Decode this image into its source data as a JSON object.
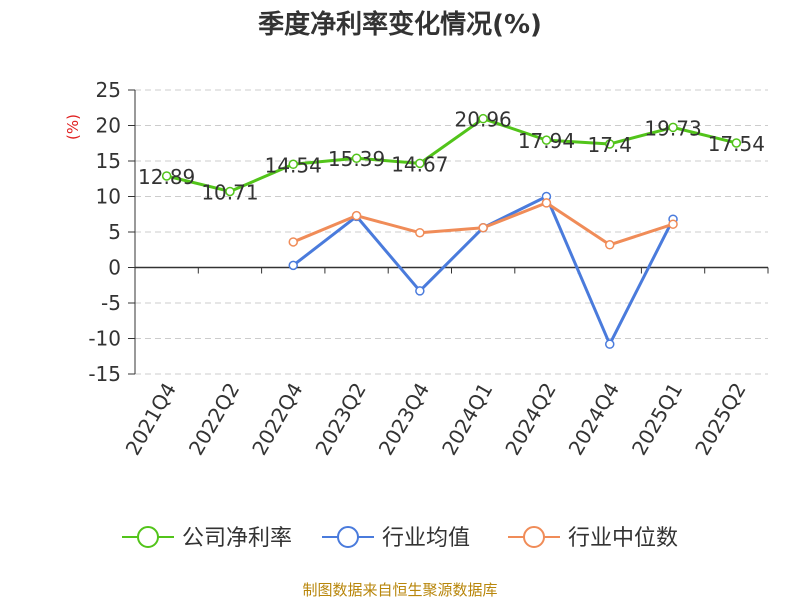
{
  "chart_data": {
    "type": "line",
    "title": "季度净利率变化情况(%)",
    "ylabel": "(%)",
    "xlabel": "",
    "ylim": [
      -15,
      25
    ],
    "yticks": [
      25,
      20,
      15,
      10,
      5,
      0,
      -5,
      -10,
      -15
    ],
    "grid": true,
    "legend_position": "bottom",
    "categories": [
      "2021Q4",
      "2022Q2",
      "2022Q4",
      "2023Q2",
      "2023Q4",
      "2024Q1",
      "2024Q2",
      "2024Q4",
      "2025Q1",
      "2025Q2"
    ],
    "series": [
      {
        "name": "公司净利率",
        "color": "#52c41a",
        "values": [
          12.89,
          10.71,
          14.54,
          15.39,
          14.67,
          20.96,
          17.94,
          17.4,
          19.73,
          17.54
        ],
        "labels": [
          "12.89",
          "10.71",
          "14.54",
          "15.39",
          "14.67",
          "20.96",
          "17.94",
          "17.4",
          "19.73",
          "17.54"
        ]
      },
      {
        "name": "行业均值",
        "color": "#4a7bdc",
        "values": [
          null,
          null,
          0.3,
          7.2,
          -3.3,
          5.6,
          10.0,
          -10.8,
          6.8,
          null
        ]
      },
      {
        "name": "行业中位数",
        "color": "#f08c58",
        "values": [
          null,
          null,
          3.6,
          7.3,
          4.9,
          5.6,
          9.1,
          3.2,
          6.1,
          null
        ]
      }
    ]
  },
  "footer": {
    "source": "制图数据来自恒生聚源数据库"
  }
}
